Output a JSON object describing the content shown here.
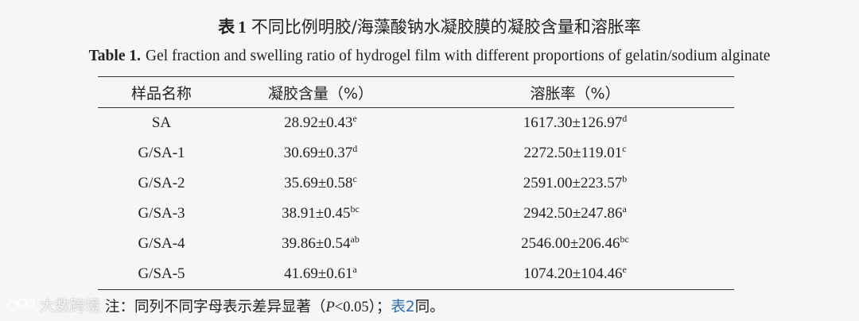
{
  "title": {
    "cn_label": "表",
    "cn_number": "1",
    "cn_text": "不同比例明胶/海藻酸钠水凝胶膜的凝胶含量和溶胀率",
    "en_label": "Table  1.",
    "en_text": "Gel fraction and swelling ratio of hydrogel film with different proportions of gelatin/sodium alginate"
  },
  "table": {
    "headers": [
      "样品名称",
      "凝胶含量（%）",
      "溶胀率（%）"
    ],
    "rows": [
      {
        "sample": "SA",
        "gel": "28.92±0.43",
        "gel_sup": "e",
        "swell": "1617.30±126.97",
        "swell_sup": "d"
      },
      {
        "sample": "G/SA-1",
        "gel": "30.69±0.37",
        "gel_sup": "d",
        "swell": "2272.50±119.01",
        "swell_sup": "c"
      },
      {
        "sample": "G/SA-2",
        "gel": "35.69±0.58",
        "gel_sup": "c",
        "swell": "2591.00±223.57",
        "swell_sup": "b"
      },
      {
        "sample": "G/SA-3",
        "gel": "38.91±0.45",
        "gel_sup": "bc",
        "swell": "2942.50±247.86",
        "swell_sup": "a"
      },
      {
        "sample": "G/SA-4",
        "gel": "39.86±0.54",
        "gel_sup": "ab",
        "swell": "2546.00±206.46",
        "swell_sup": "bc"
      },
      {
        "sample": "G/SA-5",
        "gel": "41.69±0.61",
        "gel_sup": "a",
        "swell": "1074.20±104.46",
        "swell_sup": "e"
      }
    ]
  },
  "note": {
    "prefix": "注：同列不同字母表示差异显著（",
    "p_symbol": "P",
    "p_value": "<0.05",
    "middle": "）；",
    "link": "表2",
    "suffix": "同。"
  },
  "watermark": {
    "text": "大数跨境"
  }
}
